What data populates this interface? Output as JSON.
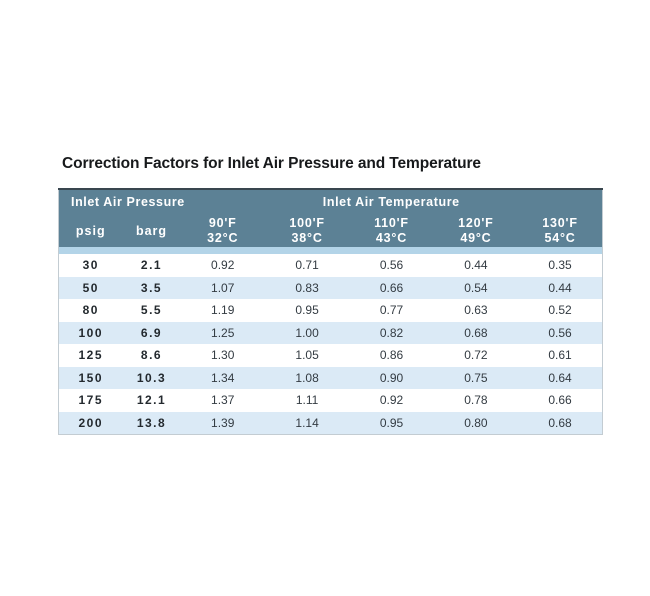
{
  "title": "Correction Factors for Inlet Air Pressure and Temperature",
  "table": {
    "group_headers": {
      "pressure": "Inlet Air Pressure",
      "temperature": "Inlet Air Temperature"
    },
    "sub_headers": {
      "pressure_units": [
        "psig",
        "barg"
      ],
      "temperatures": [
        {
          "fahrenheit": "90'F",
          "celsius": "32°C"
        },
        {
          "fahrenheit": "100'F",
          "celsius": "38°C"
        },
        {
          "fahrenheit": "110'F",
          "celsius": "43°C"
        },
        {
          "fahrenheit": "120'F",
          "celsius": "49°C"
        },
        {
          "fahrenheit": "130'F",
          "celsius": "54°C"
        }
      ]
    },
    "rows": [
      {
        "psig": "30",
        "barg": "2.1",
        "factors": [
          "0.92",
          "0.71",
          "0.56",
          "0.44",
          "0.35"
        ]
      },
      {
        "psig": "50",
        "barg": "3.5",
        "factors": [
          "1.07",
          "0.83",
          "0.66",
          "0.54",
          "0.44"
        ]
      },
      {
        "psig": "80",
        "barg": "5.5",
        "factors": [
          "1.19",
          "0.95",
          "0.77",
          "0.63",
          "0.52"
        ]
      },
      {
        "psig": "100",
        "barg": "6.9",
        "factors": [
          "1.25",
          "1.00",
          "0.82",
          "0.68",
          "0.56"
        ]
      },
      {
        "psig": "125",
        "barg": "8.6",
        "factors": [
          "1.30",
          "1.05",
          "0.86",
          "0.72",
          "0.61"
        ]
      },
      {
        "psig": "150",
        "barg": "10.3",
        "factors": [
          "1.34",
          "1.08",
          "0.90",
          "0.75",
          "0.64"
        ]
      },
      {
        "psig": "175",
        "barg": "12.1",
        "factors": [
          "1.37",
          "1.11",
          "0.92",
          "0.78",
          "0.66"
        ]
      },
      {
        "psig": "200",
        "barg": "13.8",
        "factors": [
          "1.39",
          "1.14",
          "0.95",
          "0.80",
          "0.68"
        ]
      }
    ],
    "colors": {
      "header_background": "#5c8195",
      "header_text": "#ffffff",
      "separator_strip": "#b3d4e8",
      "alt_row_background": "#dbeaf6",
      "row_background": "#ffffff",
      "body_text": "#333b42",
      "title_text": "#17191b",
      "table_top_border": "#39464f"
    }
  }
}
